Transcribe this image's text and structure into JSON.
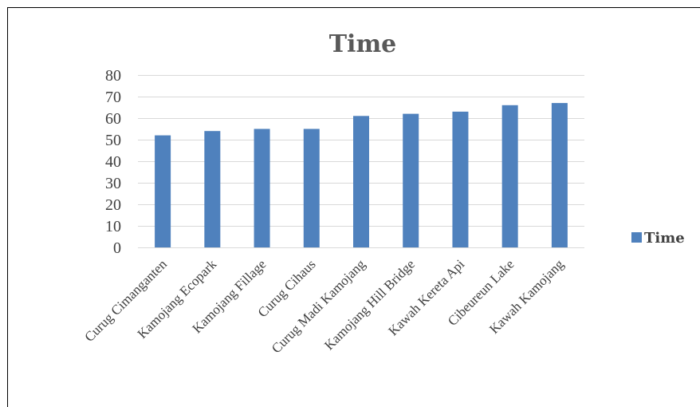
{
  "colors": {
    "bar": "#4f81bd",
    "grid": "#d9d9d9",
    "text": "#404040",
    "title": "#595959",
    "frame": "#000000"
  },
  "chart_data": {
    "type": "bar",
    "title": "Time",
    "xlabel": "",
    "ylabel": "",
    "categories": [
      "Curug Cimanganten",
      "Kamojang Ecopark",
      "Kamojang Fillage",
      "Curug Cihaus",
      "Curug Madi Kamojang",
      "Kamojang Hill Bridge",
      "Kawah Kereta Api",
      "Cibeureun Lake",
      "Kawah Kamojang"
    ],
    "series": [
      {
        "name": "Time",
        "values": [
          52,
          54,
          55,
          55,
          61,
          62,
          63,
          66,
          67
        ]
      }
    ],
    "ylim": [
      0,
      80
    ],
    "yticks": [
      0,
      10,
      20,
      30,
      40,
      50,
      60,
      70,
      80
    ],
    "grid": true,
    "legend_position": "right"
  }
}
